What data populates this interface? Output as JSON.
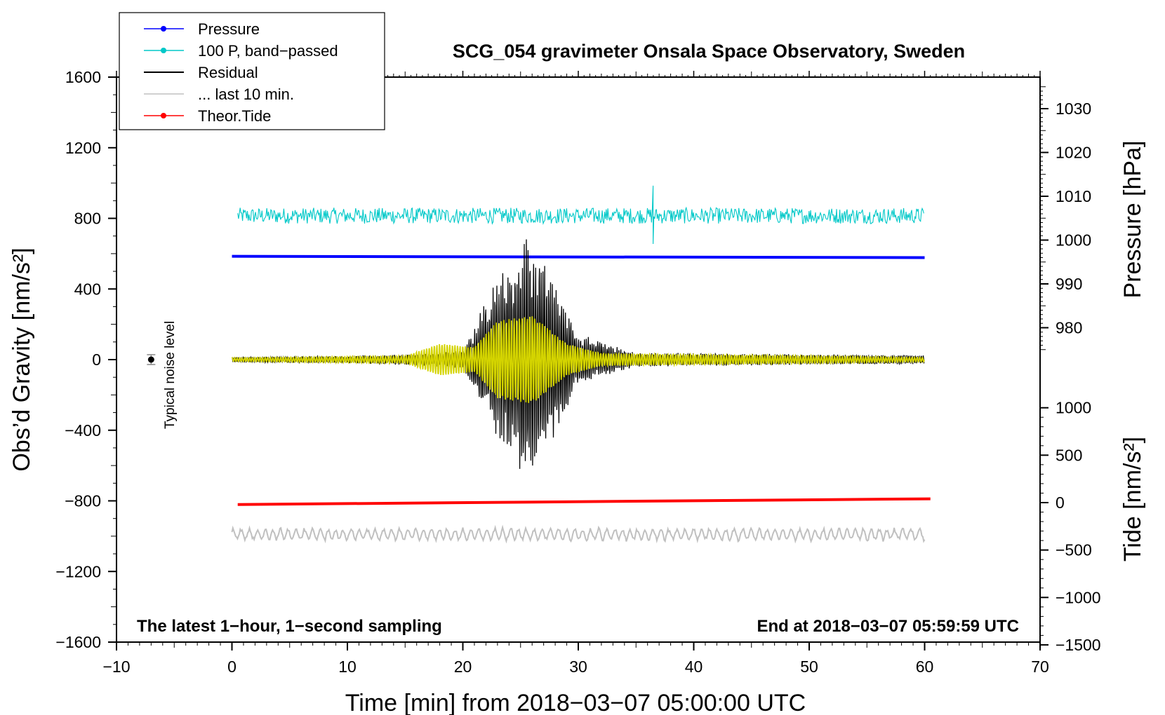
{
  "chart_data": {
    "type": "line",
    "title": "SCG_054 gravimeter Onsala Space Observatory, Sweden",
    "xlabel": "Time [min] from 2018−03−07 05:00:00 UTC",
    "ylabel_left": "Obs’d Gravity [nm/s²]",
    "ylabel_right_top": "Pressure [hPa]",
    "ylabel_right_bottom": "Tide [nm/s²]",
    "xlim": [
      -10,
      70
    ],
    "ylim_left": [
      -1600,
      1600
    ],
    "x_ticks": [
      "−10",
      "0",
      "10",
      "20",
      "30",
      "40",
      "50",
      "60",
      "70"
    ],
    "y_ticks_left": [
      "1600",
      "1200",
      "800",
      "400",
      "0",
      "−400",
      "−800",
      "−1200",
      "−1600"
    ],
    "pressure_ticks": [
      "1030",
      "1020",
      "1010",
      "1000",
      "990",
      "980"
    ],
    "tide_ticks": [
      "1000",
      "500",
      "0",
      "−500",
      "−1000",
      "−1500"
    ],
    "note_left": "The latest 1−hour, 1−second sampling",
    "note_right": "End at 2018−03−07 05:59:59 UTC",
    "noise_label": "Typical noise level",
    "noise_marker": {
      "x": -7,
      "y": 0
    },
    "legend": [
      {
        "label": "Pressure",
        "color": "#0000ff",
        "marker": true
      },
      {
        "label": "100 P, band−passed",
        "color": "#00c8c8",
        "marker": true
      },
      {
        "label": "Residual",
        "color": "#000000",
        "marker": false
      },
      {
        "label": "... last 10 min.",
        "color": "#c0c0c0",
        "marker": false
      },
      {
        "label": "Theor.Tide",
        "color": "#ff0000",
        "marker": true
      }
    ],
    "series": [
      {
        "name": "Pressure",
        "color": "#0000ff",
        "units": "hPa",
        "x": [
          0,
          60
        ],
        "values": [
          996.3,
          996.0
        ]
      },
      {
        "name": "100 P, band−passed",
        "color": "#00c8c8",
        "units": "nm/s² (left axis)",
        "x_range": [
          0.5,
          60
        ],
        "center": 815,
        "amplitude": 45,
        "spikes": [
          {
            "x": 36.5,
            "values": [
              985,
              655
            ]
          }
        ]
      },
      {
        "name": "Residual",
        "color": "#000000",
        "units": "nm/s²",
        "x_range": [
          0,
          60
        ],
        "center": 0,
        "envelope": [
          [
            0,
            15
          ],
          [
            10,
            22
          ],
          [
            15,
            30
          ],
          [
            20,
            50
          ],
          [
            22,
            350
          ],
          [
            25.5,
            700
          ],
          [
            28,
            450
          ],
          [
            30,
            150
          ],
          [
            35,
            40
          ],
          [
            60,
            25
          ]
        ]
      },
      {
        "name": "Residual (filtered)",
        "color": "#d4d400",
        "units": "nm/s²",
        "x_range": [
          0,
          60
        ],
        "center": 0,
        "envelope": [
          [
            0,
            10
          ],
          [
            15,
            20
          ],
          [
            18,
            90
          ],
          [
            21,
            70
          ],
          [
            23,
            220
          ],
          [
            26,
            250
          ],
          [
            29,
            90
          ],
          [
            32,
            35
          ],
          [
            60,
            12
          ]
        ]
      },
      {
        "name": "... last 10 min.",
        "color": "#c0c0c0",
        "units": "nm/s²",
        "x_range": [
          0,
          60
        ],
        "center": -990,
        "amplitude": 40
      },
      {
        "name": "Theor.Tide",
        "color": "#ff0000",
        "units": "nm/s²",
        "x": [
          0.5,
          60.5
        ],
        "values": [
          -20,
          40
        ]
      }
    ]
  }
}
